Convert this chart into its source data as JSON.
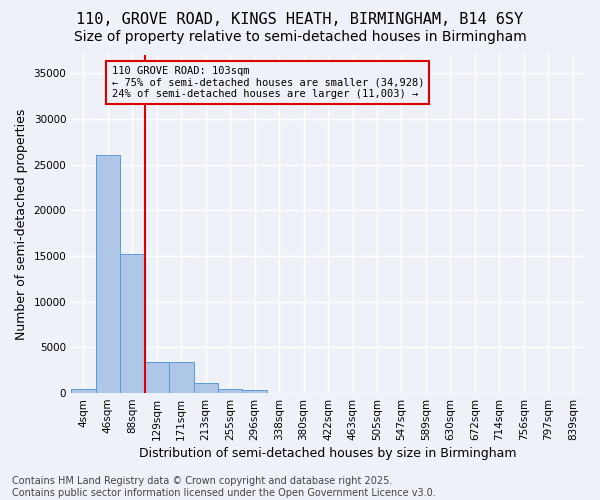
{
  "title_line1": "110, GROVE ROAD, KINGS HEATH, BIRMINGHAM, B14 6SY",
  "title_line2": "Size of property relative to semi-detached houses in Birmingham",
  "xlabel": "Distribution of semi-detached houses by size in Birmingham",
  "ylabel": "Number of semi-detached properties",
  "categories": [
    "4sqm",
    "46sqm",
    "88sqm",
    "129sqm",
    "171sqm",
    "213sqm",
    "255sqm",
    "296sqm",
    "338sqm",
    "380sqm",
    "422sqm",
    "463sqm",
    "505sqm",
    "547sqm",
    "589sqm",
    "630sqm",
    "672sqm",
    "714sqm",
    "756sqm",
    "797sqm",
    "839sqm"
  ],
  "bar_values": [
    400,
    26100,
    15200,
    3350,
    3350,
    1050,
    500,
    300,
    0,
    0,
    0,
    0,
    0,
    0,
    0,
    0,
    0,
    0,
    0,
    0,
    0
  ],
  "bar_color": "#aec6e8",
  "bar_edgecolor": "#5b9bd5",
  "red_line_x": 2.5,
  "annotation_text": "110 GROVE ROAD: 103sqm\n← 75% of semi-detached houses are smaller (34,928)\n24% of semi-detached houses are larger (11,003) →",
  "yticks": [
    0,
    5000,
    10000,
    15000,
    20000,
    25000,
    30000,
    35000
  ],
  "ylim": [
    0,
    37000
  ],
  "footer": "Contains HM Land Registry data © Crown copyright and database right 2025.\nContains public sector information licensed under the Open Government Licence v3.0.",
  "bg_color": "#eef2f8",
  "grid_color": "#ffffff",
  "red_color": "#dd0000",
  "title_fontsize": 11,
  "subtitle_fontsize": 10,
  "tick_fontsize": 7.5,
  "ylabel_fontsize": 9,
  "xlabel_fontsize": 9,
  "footer_fontsize": 7,
  "annot_fontsize": 7.5
}
